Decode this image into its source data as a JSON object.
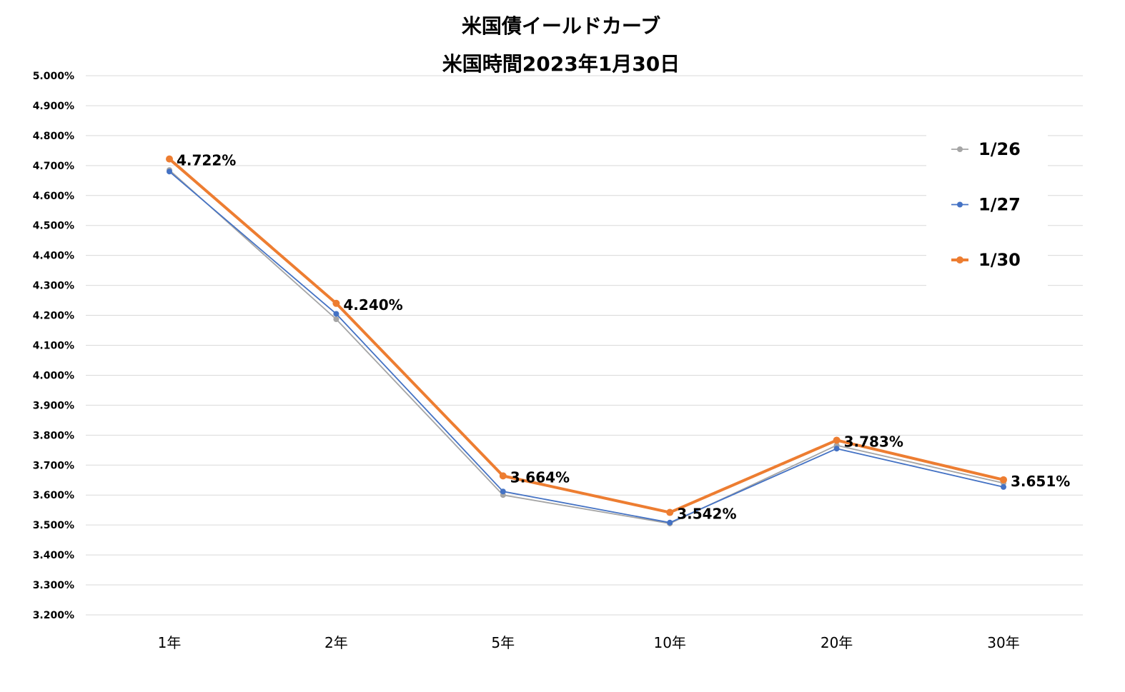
{
  "chart_data": {
    "type": "line",
    "title": "米国債イールドカーブ",
    "subtitle": "米国時間2023年1月30日",
    "categories": [
      "1年",
      "2年",
      "5年",
      "10年",
      "20年",
      "30年"
    ],
    "ylim": [
      3.2,
      5.0
    ],
    "ytick_step": 0.1,
    "ytick_format": "percent_3dp",
    "grid": true,
    "legend_position": "right",
    "series": [
      {
        "name": "1/26",
        "color": "#a5a5a5",
        "line_width": "thin",
        "values": [
          4.685,
          4.187,
          3.6,
          3.505,
          3.766,
          3.64
        ]
      },
      {
        "name": "1/27",
        "color": "#4472c4",
        "line_width": "thin",
        "values": [
          4.68,
          4.205,
          3.612,
          3.508,
          3.755,
          3.627
        ]
      },
      {
        "name": "1/30",
        "color": "#ed7d31",
        "line_width": "thick",
        "values": [
          4.722,
          4.24,
          3.664,
          3.542,
          3.783,
          3.651
        ],
        "data_labels": [
          "4.722%",
          "4.240%",
          "3.664%",
          "3.542%",
          "3.783%",
          "3.651%"
        ]
      }
    ]
  }
}
